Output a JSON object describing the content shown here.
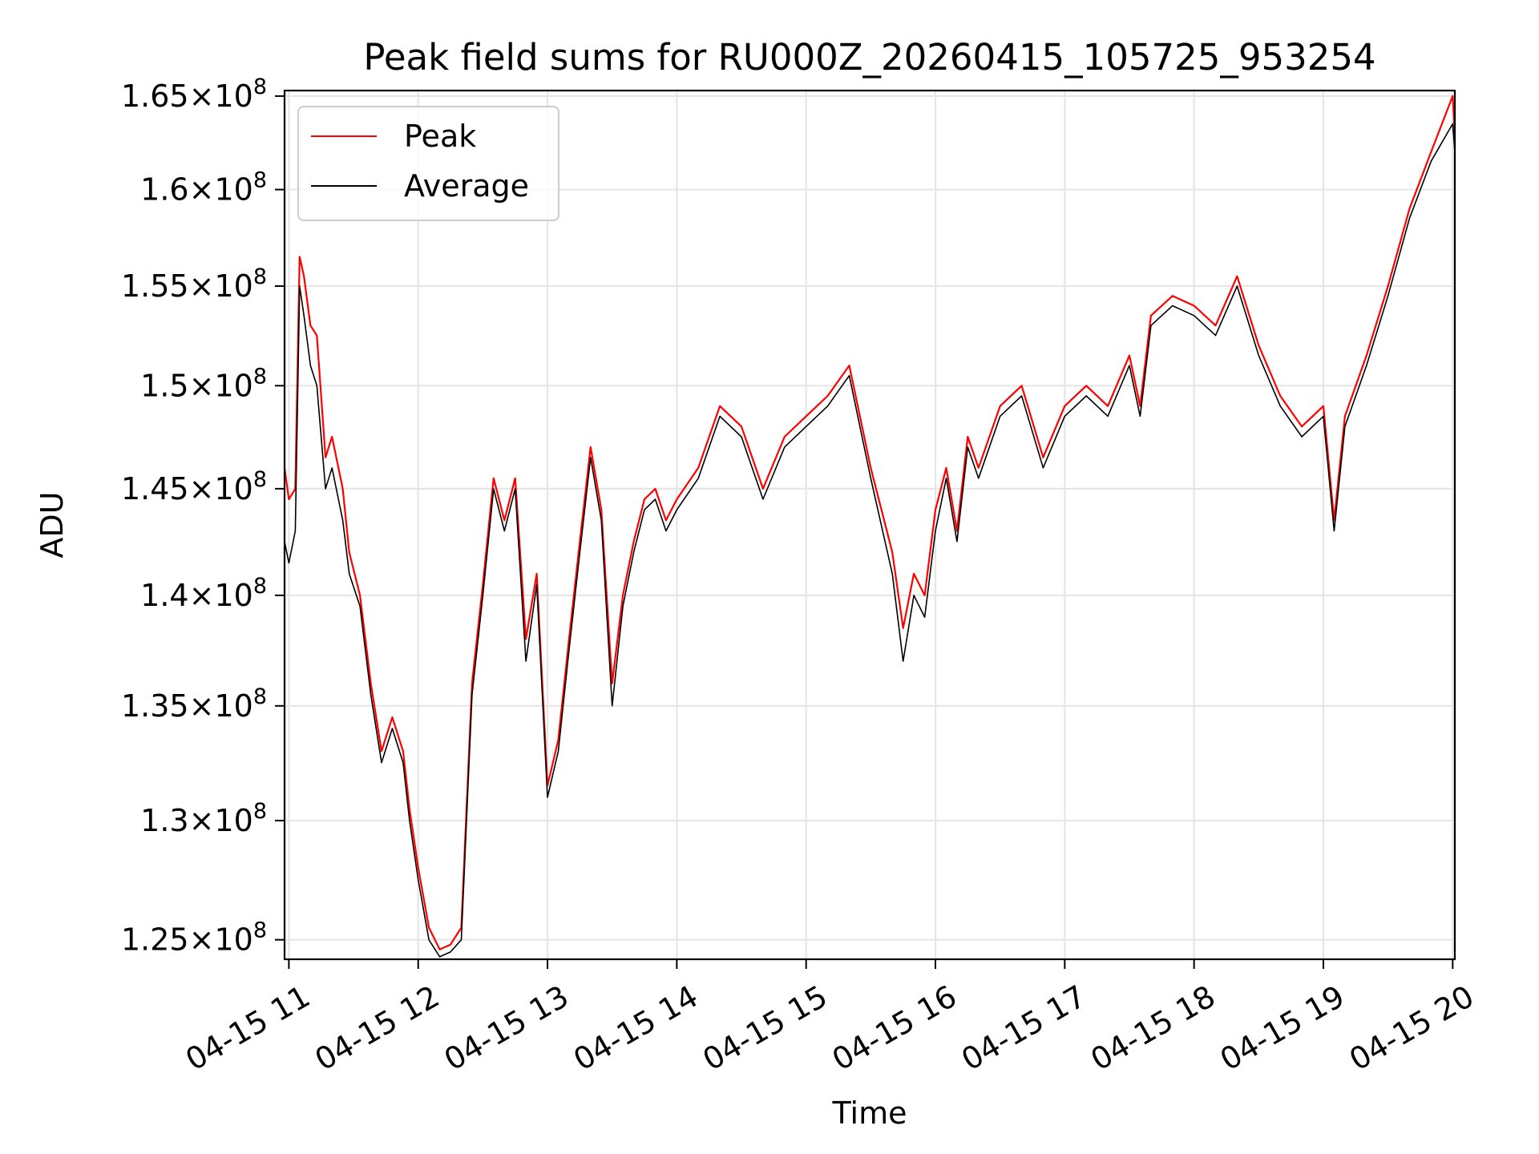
{
  "chart_data": {
    "type": "line",
    "title": "Peak field sums for RU000Z_20260415_105725_953254",
    "xlabel": "Time",
    "ylabel": "ADU",
    "xlim": [
      "2026-04-15 10:58",
      "2026-04-15 20:01"
    ],
    "ylim": [
      124200000,
      165300000
    ],
    "yscale": "log",
    "grid": true,
    "legend_position": "upper left",
    "x_ticks": [
      {
        "t": "2026-04-15 11:00",
        "label": "04-15 11"
      },
      {
        "t": "2026-04-15 12:00",
        "label": "04-15 12"
      },
      {
        "t": "2026-04-15 13:00",
        "label": "04-15 13"
      },
      {
        "t": "2026-04-15 14:00",
        "label": "04-15 14"
      },
      {
        "t": "2026-04-15 15:00",
        "label": "04-15 15"
      },
      {
        "t": "2026-04-15 16:00",
        "label": "04-15 16"
      },
      {
        "t": "2026-04-15 17:00",
        "label": "04-15 17"
      },
      {
        "t": "2026-04-15 18:00",
        "label": "04-15 18"
      },
      {
        "t": "2026-04-15 19:00",
        "label": "04-15 19"
      },
      {
        "t": "2026-04-15 20:00",
        "label": "04-15 20"
      }
    ],
    "y_ticks": [
      {
        "value": 125000000,
        "mantissa": "1.25",
        "exp": "8"
      },
      {
        "value": 130000000,
        "mantissa": "1.3",
        "exp": "8"
      },
      {
        "value": 135000000,
        "mantissa": "1.35",
        "exp": "8"
      },
      {
        "value": 140000000,
        "mantissa": "1.4",
        "exp": "8"
      },
      {
        "value": 145000000,
        "mantissa": "1.45",
        "exp": "8"
      },
      {
        "value": 150000000,
        "mantissa": "1.5",
        "exp": "8"
      },
      {
        "value": 155000000,
        "mantissa": "1.55",
        "exp": "8"
      },
      {
        "value": 160000000,
        "mantissa": "1.6",
        "exp": "8"
      },
      {
        "value": 165000000,
        "mantissa": "1.65",
        "exp": "8"
      }
    ],
    "series": [
      {
        "name": "Peak",
        "color": "#ff0000",
        "x": [
          "2026-04-15 10:58",
          "2026-04-15 11:00",
          "2026-04-15 11:03",
          "2026-04-15 11:05",
          "2026-04-15 11:07",
          "2026-04-15 11:10",
          "2026-04-15 11:13",
          "2026-04-15 11:17",
          "2026-04-15 11:20",
          "2026-04-15 11:25",
          "2026-04-15 11:28",
          "2026-04-15 11:33",
          "2026-04-15 11:38",
          "2026-04-15 11:43",
          "2026-04-15 11:48",
          "2026-04-15 11:53",
          "2026-04-15 11:56",
          "2026-04-15 12:00",
          "2026-04-15 12:05",
          "2026-04-15 12:10",
          "2026-04-15 12:15",
          "2026-04-15 12:20",
          "2026-04-15 12:25",
          "2026-04-15 12:30",
          "2026-04-15 12:35",
          "2026-04-15 12:40",
          "2026-04-15 12:45",
          "2026-04-15 12:50",
          "2026-04-15 12:55",
          "2026-04-15 13:00",
          "2026-04-15 13:05",
          "2026-04-15 13:10",
          "2026-04-15 13:15",
          "2026-04-15 13:20",
          "2026-04-15 13:25",
          "2026-04-15 13:30",
          "2026-04-15 13:35",
          "2026-04-15 13:40",
          "2026-04-15 13:45",
          "2026-04-15 13:50",
          "2026-04-15 13:55",
          "2026-04-15 14:00",
          "2026-04-15 14:10",
          "2026-04-15 14:20",
          "2026-04-15 14:30",
          "2026-04-15 14:40",
          "2026-04-15 14:50",
          "2026-04-15 15:00",
          "2026-04-15 15:10",
          "2026-04-15 15:20",
          "2026-04-15 15:30",
          "2026-04-15 15:40",
          "2026-04-15 15:45",
          "2026-04-15 15:50",
          "2026-04-15 15:55",
          "2026-04-15 16:00",
          "2026-04-15 16:05",
          "2026-04-15 16:10",
          "2026-04-15 16:15",
          "2026-04-15 16:20",
          "2026-04-15 16:30",
          "2026-04-15 16:40",
          "2026-04-15 16:50",
          "2026-04-15 17:00",
          "2026-04-15 17:10",
          "2026-04-15 17:20",
          "2026-04-15 17:30",
          "2026-04-15 17:35",
          "2026-04-15 17:40",
          "2026-04-15 17:50",
          "2026-04-15 18:00",
          "2026-04-15 18:10",
          "2026-04-15 18:20",
          "2026-04-15 18:30",
          "2026-04-15 18:40",
          "2026-04-15 18:50",
          "2026-04-15 19:00",
          "2026-04-15 19:05",
          "2026-04-15 19:10",
          "2026-04-15 19:20",
          "2026-04-15 19:30",
          "2026-04-15 19:40",
          "2026-04-15 19:50",
          "2026-04-15 20:00",
          "2026-04-15 20:01"
        ],
        "values": [
          146000000,
          144500000,
          145000000,
          156500000,
          155500000,
          153000000,
          152500000,
          146500000,
          147500000,
          145000000,
          142000000,
          140000000,
          136000000,
          133000000,
          134500000,
          133000000,
          130500000,
          128000000,
          125500000,
          124600000,
          124800000,
          125500000,
          136000000,
          140500000,
          145500000,
          143500000,
          145500000,
          138000000,
          141000000,
          131500000,
          133500000,
          138000000,
          142500000,
          147000000,
          144000000,
          136000000,
          140000000,
          142500000,
          144500000,
          145000000,
          143500000,
          144500000,
          146000000,
          149000000,
          148000000,
          145000000,
          147500000,
          148500000,
          149500000,
          151000000,
          146000000,
          142000000,
          138500000,
          141000000,
          140000000,
          144000000,
          146000000,
          143000000,
          147500000,
          146000000,
          149000000,
          150000000,
          146500000,
          149000000,
          150000000,
          149000000,
          151500000,
          149000000,
          153500000,
          154500000,
          154000000,
          153000000,
          155500000,
          152000000,
          149500000,
          148000000,
          149000000,
          143500000,
          148500000,
          151500000,
          155000000,
          159000000,
          162000000,
          165000000,
          163000000
        ]
      },
      {
        "name": "Average",
        "color": "#000000",
        "x": [
          "2026-04-15 10:58",
          "2026-04-15 11:00",
          "2026-04-15 11:03",
          "2026-04-15 11:05",
          "2026-04-15 11:07",
          "2026-04-15 11:10",
          "2026-04-15 11:13",
          "2026-04-15 11:17",
          "2026-04-15 11:20",
          "2026-04-15 11:25",
          "2026-04-15 11:28",
          "2026-04-15 11:33",
          "2026-04-15 11:38",
          "2026-04-15 11:43",
          "2026-04-15 11:48",
          "2026-04-15 11:53",
          "2026-04-15 11:56",
          "2026-04-15 12:00",
          "2026-04-15 12:05",
          "2026-04-15 12:10",
          "2026-04-15 12:15",
          "2026-04-15 12:20",
          "2026-04-15 12:25",
          "2026-04-15 12:30",
          "2026-04-15 12:35",
          "2026-04-15 12:40",
          "2026-04-15 12:45",
          "2026-04-15 12:50",
          "2026-04-15 12:55",
          "2026-04-15 13:00",
          "2026-04-15 13:05",
          "2026-04-15 13:10",
          "2026-04-15 13:15",
          "2026-04-15 13:20",
          "2026-04-15 13:25",
          "2026-04-15 13:30",
          "2026-04-15 13:35",
          "2026-04-15 13:40",
          "2026-04-15 13:45",
          "2026-04-15 13:50",
          "2026-04-15 13:55",
          "2026-04-15 14:00",
          "2026-04-15 14:10",
          "2026-04-15 14:20",
          "2026-04-15 14:30",
          "2026-04-15 14:40",
          "2026-04-15 14:50",
          "2026-04-15 15:00",
          "2026-04-15 15:10",
          "2026-04-15 15:20",
          "2026-04-15 15:30",
          "2026-04-15 15:40",
          "2026-04-15 15:45",
          "2026-04-15 15:50",
          "2026-04-15 15:55",
          "2026-04-15 16:00",
          "2026-04-15 16:05",
          "2026-04-15 16:10",
          "2026-04-15 16:15",
          "2026-04-15 16:20",
          "2026-04-15 16:30",
          "2026-04-15 16:40",
          "2026-04-15 16:50",
          "2026-04-15 17:00",
          "2026-04-15 17:10",
          "2026-04-15 17:20",
          "2026-04-15 17:30",
          "2026-04-15 17:35",
          "2026-04-15 17:40",
          "2026-04-15 17:50",
          "2026-04-15 18:00",
          "2026-04-15 18:10",
          "2026-04-15 18:20",
          "2026-04-15 18:30",
          "2026-04-15 18:40",
          "2026-04-15 18:50",
          "2026-04-15 19:00",
          "2026-04-15 19:05",
          "2026-04-15 19:10",
          "2026-04-15 19:20",
          "2026-04-15 19:30",
          "2026-04-15 19:40",
          "2026-04-15 19:50",
          "2026-04-15 20:00",
          "2026-04-15 20:01"
        ],
        "values": [
          142500000,
          141500000,
          143000000,
          155000000,
          153500000,
          151000000,
          150000000,
          145000000,
          146000000,
          143500000,
          141000000,
          139500000,
          135500000,
          132500000,
          134000000,
          132500000,
          130000000,
          127500000,
          125000000,
          124300000,
          124500000,
          125000000,
          135500000,
          140000000,
          145000000,
          143000000,
          145000000,
          137000000,
          140500000,
          131000000,
          133000000,
          137500000,
          142000000,
          146500000,
          143500000,
          135000000,
          139500000,
          142000000,
          144000000,
          144500000,
          143000000,
          144000000,
          145500000,
          148500000,
          147500000,
          144500000,
          147000000,
          148000000,
          149000000,
          150500000,
          145500000,
          141000000,
          137000000,
          140000000,
          139000000,
          143000000,
          145500000,
          142500000,
          147000000,
          145500000,
          148500000,
          149500000,
          146000000,
          148500000,
          149500000,
          148500000,
          151000000,
          148500000,
          153000000,
          154000000,
          153500000,
          152500000,
          155000000,
          151500000,
          149000000,
          147500000,
          148500000,
          143000000,
          148000000,
          151000000,
          154500000,
          158500000,
          161500000,
          163500000,
          162000000
        ]
      }
    ]
  }
}
